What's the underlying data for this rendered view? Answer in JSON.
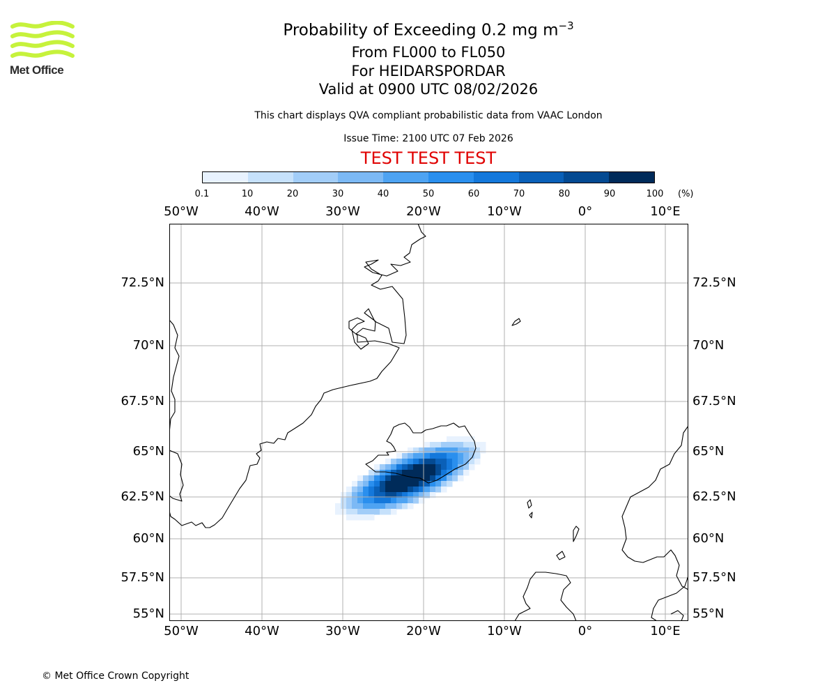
{
  "header": {
    "logo_text": "Met Office",
    "title_main": "Probability of Exceeding 0.2 mg m",
    "title_exponent": "−3",
    "flight_levels": "From FL000 to FL050",
    "volcano": "For HEIDARSPORDAR",
    "valid_time": "Valid at 0900 UTC 08/02/2026",
    "qva_note": "This chart displays QVA compliant probabilistic data from VAAC London",
    "issue_time": "Issue Time: 2100 UTC 07 Feb 2026",
    "test_banner": "TEST TEST TEST"
  },
  "colorbar": {
    "ticks": [
      "0.1",
      "10",
      "20",
      "30",
      "40",
      "50",
      "60",
      "70",
      "80",
      "90",
      "100"
    ],
    "unit": "(%)",
    "colors": [
      "#e8f2fe",
      "#c6e1fb",
      "#a2cdf8",
      "#7cb9f5",
      "#4ea3f2",
      "#2a8fee",
      "#1478db",
      "#0a60b8",
      "#044a92",
      "#002b5a"
    ]
  },
  "map": {
    "lon_labels": [
      "50°W",
      "40°W",
      "30°W",
      "20°W",
      "10°W",
      "0°",
      "10°E"
    ],
    "lat_labels": [
      "72.5°N",
      "70°N",
      "67.5°N",
      "65°N",
      "62.5°N",
      "60°N",
      "57.5°N",
      "55°N"
    ],
    "accent_colors": {
      "gridline": "#b0b0b0",
      "coastline": "#000000",
      "test_banner": "#e00000"
    }
  },
  "footer": {
    "copyright": "© Met Office Crown Copyright"
  }
}
